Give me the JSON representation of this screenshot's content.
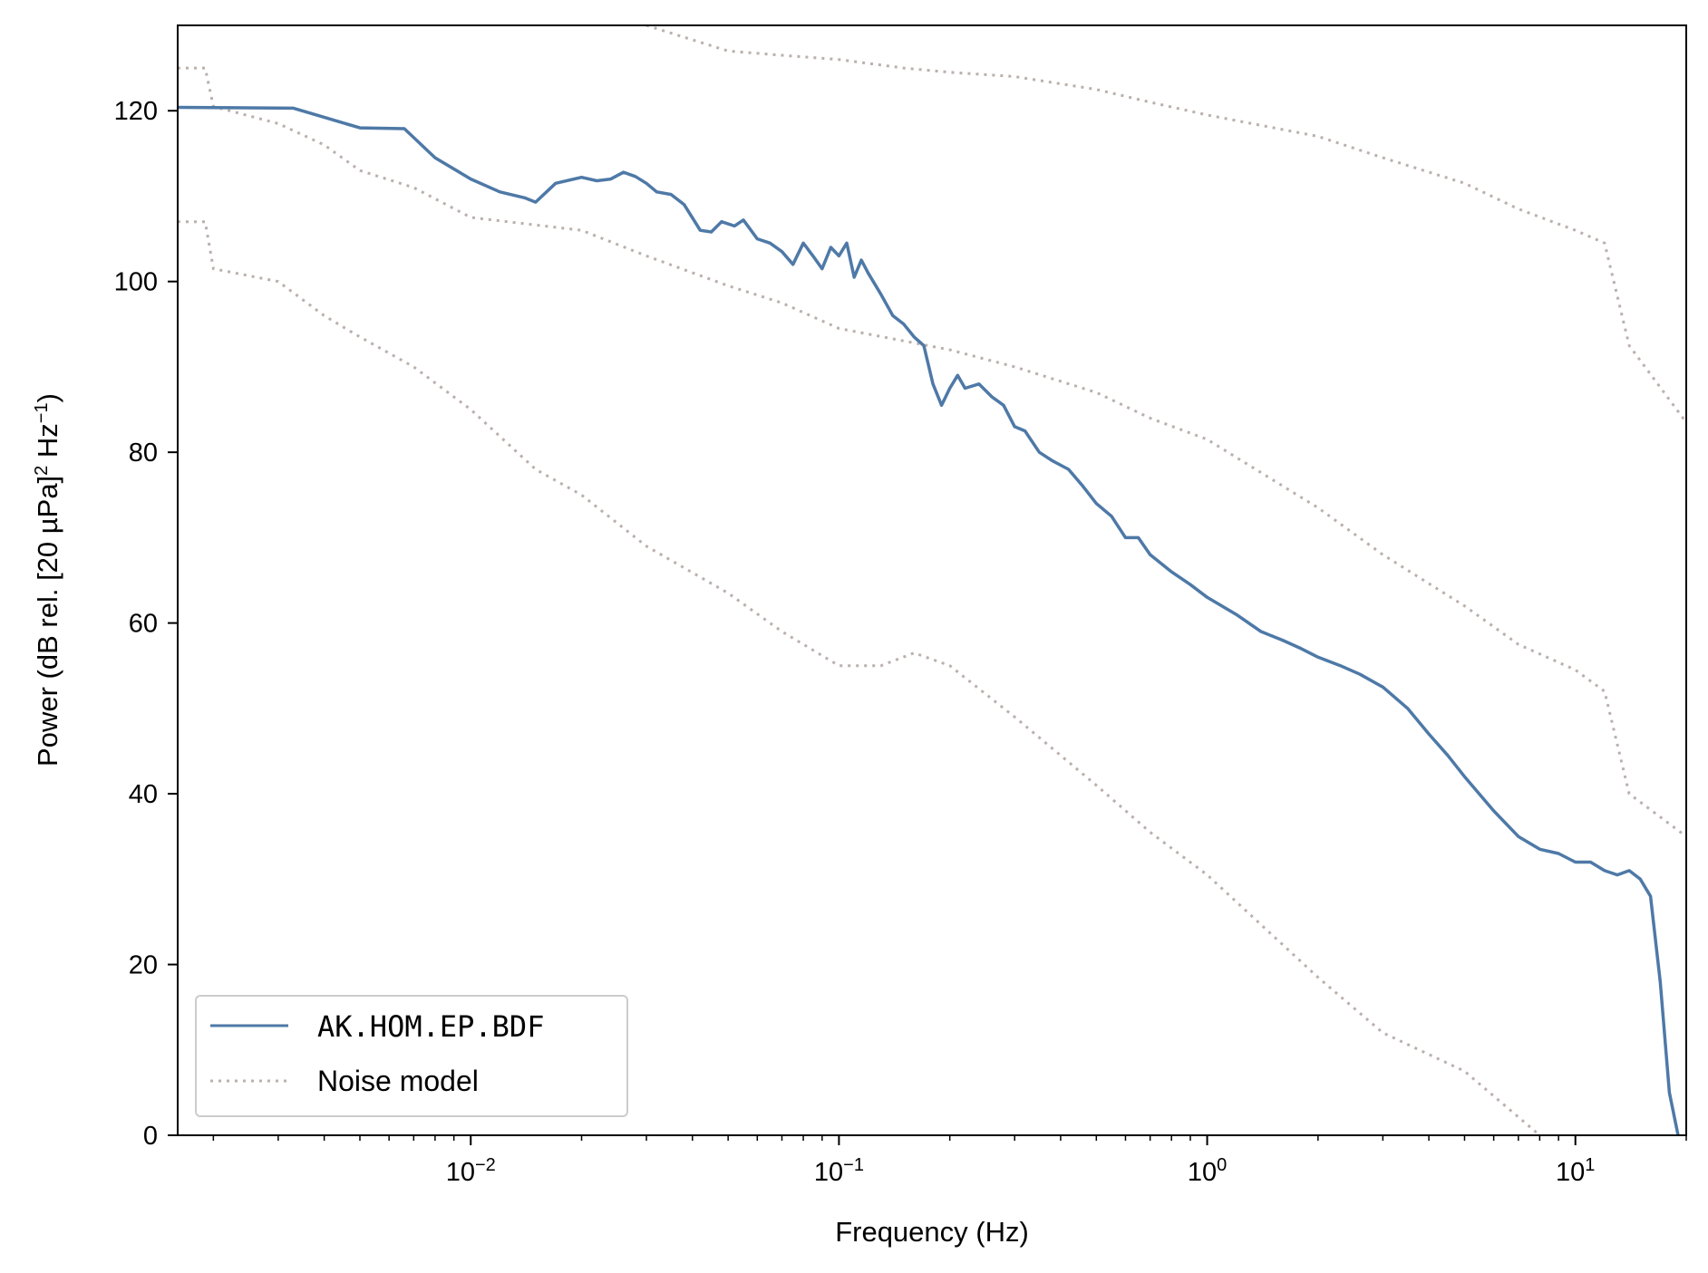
{
  "colors": {
    "series": "#4e79a7",
    "noise": "#bab0ac",
    "axis": "#000000",
    "legend_border": "#cccccc"
  },
  "chart_data": {
    "type": "line",
    "xscale": "log",
    "xlabel": "Frequency (Hz)",
    "ylabel_main": "Power (dB rel. [20 µPa]",
    "ylabel_sup1": "2",
    "ylabel_mid": " Hz",
    "ylabel_sup2": "−1",
    "ylabel_end": ")",
    "xlim": [
      0.0016,
      20
    ],
    "ylim": [
      0,
      130
    ],
    "xticks": [
      {
        "value": 0.01,
        "base": "10",
        "exp": "−2"
      },
      {
        "value": 0.1,
        "base": "10",
        "exp": "−1"
      },
      {
        "value": 1,
        "base": "10",
        "exp": "0"
      },
      {
        "value": 10,
        "base": "10",
        "exp": "1"
      }
    ],
    "yticks": [
      0,
      20,
      40,
      60,
      80,
      100,
      120
    ],
    "legend": {
      "position": "lower-left",
      "entries": [
        {
          "label": "AK.HOM.EP.BDF",
          "style": "solid",
          "series": "AK.HOM.EP.BDF"
        },
        {
          "label": "Noise model",
          "style": "dotted",
          "series": "noise"
        }
      ]
    },
    "series": [
      {
        "name": "AK.HOM.EP.BDF",
        "style": "solid",
        "x": [
          0.0016,
          0.0033,
          0.005,
          0.0066,
          0.008,
          0.01,
          0.012,
          0.014,
          0.015,
          0.017,
          0.02,
          0.022,
          0.024,
          0.026,
          0.028,
          0.03,
          0.032,
          0.035,
          0.038,
          0.042,
          0.045,
          0.048,
          0.052,
          0.055,
          0.06,
          0.065,
          0.07,
          0.075,
          0.08,
          0.085,
          0.09,
          0.095,
          0.1,
          0.105,
          0.11,
          0.115,
          0.12,
          0.13,
          0.14,
          0.15,
          0.16,
          0.17,
          0.18,
          0.19,
          0.2,
          0.21,
          0.22,
          0.24,
          0.26,
          0.28,
          0.3,
          0.32,
          0.35,
          0.38,
          0.42,
          0.46,
          0.5,
          0.55,
          0.6,
          0.65,
          0.7,
          0.8,
          0.9,
          1.0,
          1.2,
          1.4,
          1.6,
          1.8,
          2.0,
          2.3,
          2.6,
          3.0,
          3.5,
          4.0,
          4.5,
          5.0,
          6.0,
          7.0,
          8.0,
          9.0,
          10.0,
          11.0,
          12.0,
          13.0,
          14.0,
          15.0,
          16.0,
          17.0,
          18.0,
          19.0
        ],
        "y": [
          120.4,
          120.3,
          118.0,
          117.9,
          114.5,
          112.0,
          110.5,
          109.8,
          109.3,
          111.5,
          112.2,
          111.8,
          112.0,
          112.8,
          112.3,
          111.5,
          110.5,
          110.2,
          109.0,
          106.0,
          105.8,
          107.0,
          106.5,
          107.2,
          105.0,
          104.5,
          103.5,
          102.0,
          104.5,
          103.0,
          101.5,
          104.0,
          103.0,
          104.5,
          100.5,
          102.5,
          101.0,
          98.5,
          96.0,
          95.0,
          93.5,
          92.5,
          88.0,
          85.5,
          87.5,
          89.0,
          87.5,
          88.0,
          86.5,
          85.5,
          83.0,
          82.5,
          80.0,
          79.0,
          78.0,
          76.0,
          74.0,
          72.5,
          70.0,
          70.0,
          68.0,
          66.0,
          64.5,
          63.0,
          61.0,
          59.0,
          58.0,
          57.0,
          56.0,
          55.0,
          54.0,
          52.5,
          50.0,
          47.0,
          44.5,
          42.0,
          38.0,
          35.0,
          33.5,
          33.0,
          32.0,
          32.0,
          31.0,
          30.5,
          31.0,
          30.0,
          28.0,
          18.0,
          5.0,
          0.0
        ]
      },
      {
        "name": "noise",
        "style": "dotted",
        "x": [
          0.0016,
          0.0019,
          0.002,
          0.003,
          0.004,
          0.005,
          0.007,
          0.01,
          0.02,
          0.03,
          0.05,
          0.07,
          0.1,
          0.2,
          0.3,
          0.5,
          0.7,
          1.0,
          2.0,
          3.0,
          5.0,
          7.0,
          10.0,
          12.0,
          14.0,
          20.0
        ],
        "y": [
          125.0,
          125.0,
          120.5,
          118.5,
          116.0,
          113.0,
          111.0,
          107.5,
          106.0,
          103.0,
          99.5,
          97.5,
          94.5,
          92.0,
          90.0,
          87.0,
          84.0,
          81.5,
          73.5,
          68.0,
          62.0,
          57.5,
          54.5,
          52.0,
          40.0,
          35.0
        ]
      },
      {
        "name": "noise",
        "style": "dotted",
        "x": [
          0.0016,
          0.0019,
          0.002,
          0.003,
          0.004,
          0.005,
          0.007,
          0.01,
          0.015,
          0.02,
          0.03,
          0.05,
          0.07,
          0.1,
          0.13,
          0.16,
          0.2,
          0.3,
          0.5,
          0.7,
          1.0,
          2.0,
          3.0,
          5.0,
          8.0
        ],
        "y": [
          107.0,
          107.0,
          101.5,
          100.0,
          96.0,
          93.5,
          90.0,
          85.0,
          78.0,
          75.0,
          69.0,
          63.5,
          59.0,
          55.0,
          55.0,
          56.5,
          55.0,
          49.0,
          41.0,
          35.5,
          30.5,
          18.5,
          12.0,
          7.5,
          0.0
        ]
      },
      {
        "name": "noise",
        "style": "dotted",
        "x": [
          0.03,
          0.05,
          0.07,
          0.1,
          0.15,
          0.2,
          0.3,
          0.5,
          0.7,
          1.0,
          2.0,
          3.0,
          5.0,
          7.0,
          10.0,
          12.0,
          14.0,
          20.0
        ],
        "y": [
          130.0,
          127.0,
          126.5,
          126.0,
          125.0,
          124.5,
          124.0,
          122.5,
          121.0,
          119.5,
          117.0,
          114.5,
          111.5,
          108.5,
          106.0,
          104.5,
          92.5,
          83.5
        ]
      }
    ]
  }
}
